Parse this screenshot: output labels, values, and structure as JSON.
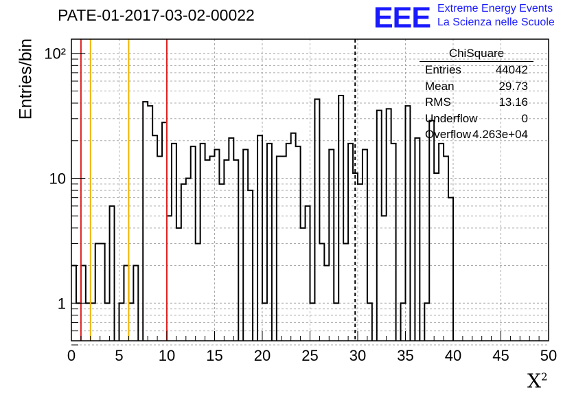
{
  "title": "PATE-01-2017-03-02-00022",
  "logo": {
    "mark": "EEE",
    "line1": "Extreme Energy Events",
    "line2": "La Scienza nelle Scuole",
    "color": "#1a1aff"
  },
  "stats_box": {
    "title": "ChiSquare",
    "rows": [
      {
        "key": "Entries",
        "value": "44042"
      },
      {
        "key": "Mean",
        "value": "29.73"
      },
      {
        "key": "RMS",
        "value": "13.16"
      },
      {
        "key": "Underflow",
        "value": "0"
      },
      {
        "key": "Overflow",
        "value": "4.263e+04"
      }
    ]
  },
  "chart_data": {
    "type": "histogram",
    "title": "PATE-01-2017-03-02-00022",
    "xlabel": "X²",
    "ylabel": "Entries/bin",
    "xlim": [
      0,
      50
    ],
    "ylim": [
      0.5,
      130
    ],
    "yscale": "log",
    "grid": true,
    "bin_width": 0.5,
    "bin_start": 0,
    "x_ticks": [
      0,
      5,
      10,
      15,
      20,
      25,
      30,
      35,
      40,
      45,
      50
    ],
    "y_tick_labels": [
      {
        "value": 1,
        "text": "1"
      },
      {
        "value": 10,
        "text": "10"
      },
      {
        "value": 100,
        "text": "10²"
      }
    ],
    "counts": [
      2,
      1,
      2,
      1,
      1,
      3,
      3,
      1,
      6,
      0,
      1,
      2,
      1,
      2,
      0,
      41,
      38,
      22,
      15,
      28,
      5,
      19,
      4,
      9,
      10,
      18,
      3,
      19,
      14,
      15,
      17,
      9,
      14,
      21,
      14,
      0,
      17,
      8,
      0,
      22,
      1,
      19,
      0,
      15,
      15,
      19,
      23,
      18,
      4,
      6,
      1,
      43,
      3,
      2,
      17,
      1,
      46,
      3,
      19,
      11,
      9,
      17,
      1,
      0,
      35,
      5,
      36,
      19,
      0,
      1,
      38,
      0,
      21,
      0,
      1,
      29,
      11,
      19,
      15,
      7,
      0,
      0,
      0,
      0,
      0,
      0,
      0,
      0,
      0,
      0,
      0,
      0,
      0,
      0,
      0,
      0,
      0,
      0,
      0,
      0
    ],
    "vertical_lines": [
      {
        "x": 1,
        "color": "#dd2222",
        "style": "solid"
      },
      {
        "x": 2,
        "color": "#f0b400",
        "style": "solid"
      },
      {
        "x": 6,
        "color": "#f0b400",
        "style": "solid"
      },
      {
        "x": 10,
        "color": "#dd2222",
        "style": "solid"
      },
      {
        "x": 29.73,
        "color": "#000000",
        "style": "dashed"
      }
    ]
  }
}
